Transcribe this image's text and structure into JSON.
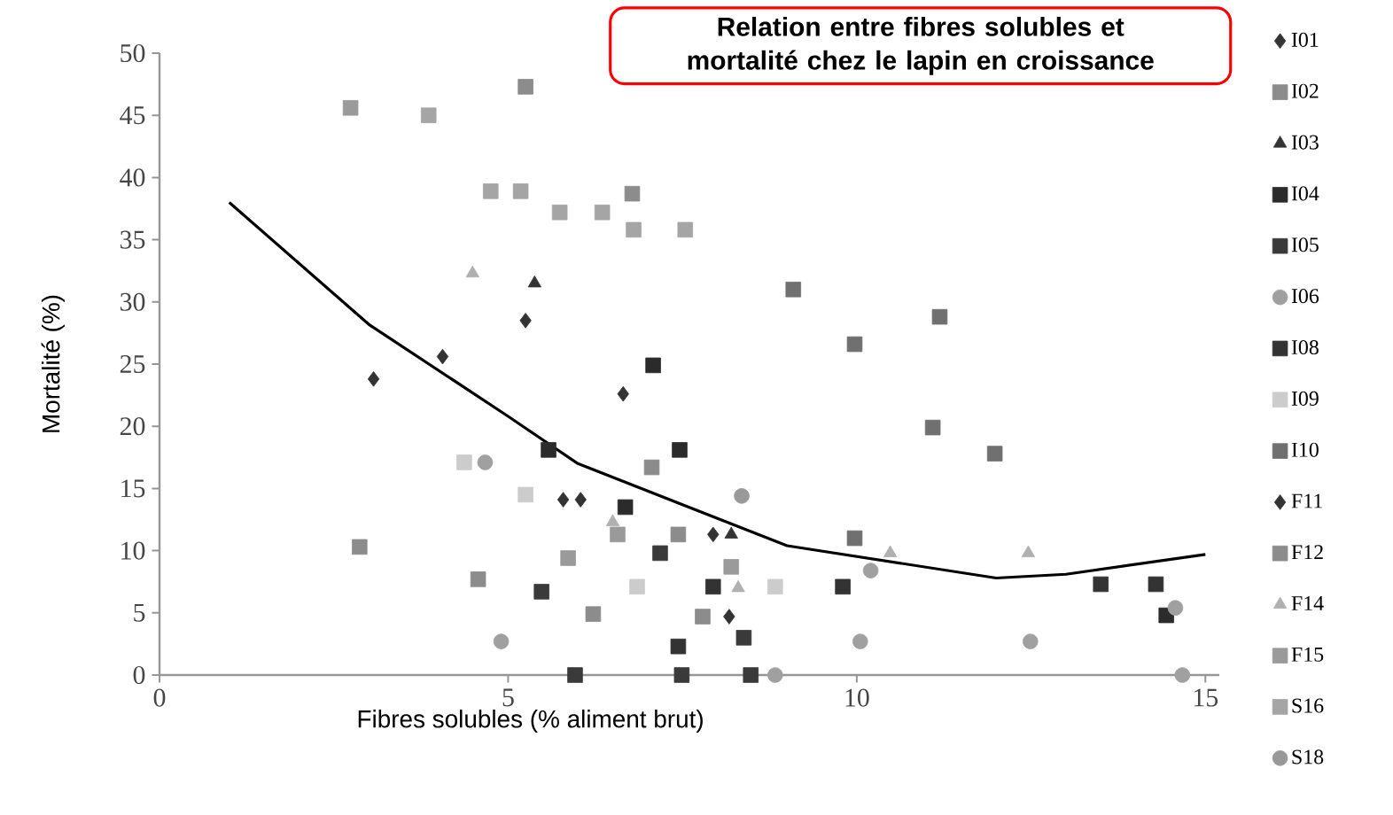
{
  "chart_data": {
    "type": "scatter",
    "title": "Relation entre fibres solubles et mortalité chez le lapin en croissance",
    "xlabel": "Fibres solubles  (% aliment brut)",
    "ylabel": "Mortalité (%)",
    "xlim": [
      0,
      15.2
    ],
    "ylim": [
      0,
      50
    ],
    "xticks": [
      0,
      5,
      10,
      15
    ],
    "yticks": [
      0,
      5,
      10,
      15,
      20,
      25,
      30,
      35,
      40,
      45,
      50
    ],
    "grid": false,
    "legend": "right",
    "series": [
      {
        "name": "I01",
        "color": "#333333",
        "marker": "diamond",
        "x": [
          3.07,
          4.06,
          5.25,
          6.65
        ],
        "values": [
          23.8,
          25.6,
          28.5,
          22.6
        ]
      },
      {
        "name": "I02",
        "color": "#8c8c8c",
        "marker": "square",
        "x": [
          5.25,
          6.78
        ],
        "values": [
          47.3,
          38.7
        ]
      },
      {
        "name": "I03",
        "color": "#333333",
        "marker": "triangle",
        "x": [
          5.38,
          8.2
        ],
        "values": [
          31.5,
          11.3
        ]
      },
      {
        "name": "I04",
        "color": "#2b2b2b",
        "marker": "square",
        "x": [
          5.58,
          6.68,
          7.08,
          7.46,
          14.44
        ],
        "values": [
          18.1,
          13.5,
          24.9,
          18.1,
          4.8
        ]
      },
      {
        "name": "I05",
        "color": "#3a3a3a",
        "marker": "square",
        "x": [
          5.48,
          5.96,
          7.18,
          7.49,
          8.38,
          8.48
        ],
        "values": [
          6.7,
          0,
          9.8,
          0,
          3.0,
          0
        ]
      },
      {
        "name": "I06",
        "color": "#a0a0a0",
        "marker": "circle",
        "x": [
          4.67,
          4.9,
          8.83,
          10.05,
          10.2,
          12.49,
          14.57,
          14.67
        ],
        "values": [
          17.1,
          2.7,
          0,
          2.7,
          8.4,
          2.7,
          5.4,
          0
        ]
      },
      {
        "name": "I08",
        "color": "#333333",
        "marker": "square",
        "x": [
          7.44,
          7.94,
          9.8,
          13.5,
          14.29
        ],
        "values": [
          2.3,
          7.1,
          7.1,
          7.3,
          7.3
        ]
      },
      {
        "name": "I09",
        "color": "#cccccc",
        "marker": "square",
        "x": [
          4.37,
          5.25,
          6.85,
          8.83
        ],
        "values": [
          17.1,
          14.5,
          7.1,
          7.1
        ]
      },
      {
        "name": "I10",
        "color": "#707070",
        "marker": "square",
        "x": [
          9.09,
          9.97,
          9.97,
          11.19,
          11.09,
          11.98
        ],
        "values": [
          31.0,
          26.6,
          11.0,
          28.8,
          19.9,
          17.8
        ]
      },
      {
        "name": "F11",
        "color": "#333333",
        "marker": "diamond",
        "x": [
          5.79,
          6.04,
          7.94,
          8.17
        ],
        "values": [
          14.1,
          14.1,
          11.3,
          4.7
        ]
      },
      {
        "name": "F12",
        "color": "#8c8c8c",
        "marker": "square",
        "x": [
          2.87,
          4.57,
          6.22,
          7.06,
          7.44,
          7.79
        ],
        "values": [
          10.3,
          7.7,
          4.9,
          16.7,
          11.3,
          4.7
        ]
      },
      {
        "name": "F14",
        "color": "#b0b0b0",
        "marker": "triangle",
        "x": [
          4.49,
          6.5,
          8.3,
          10.48,
          12.46
        ],
        "values": [
          32.3,
          12.3,
          7.0,
          9.8,
          9.8
        ]
      },
      {
        "name": "F15",
        "color": "#9a9a9a",
        "marker": "square",
        "x": [
          2.74,
          5.86,
          6.57,
          8.2
        ],
        "values": [
          45.6,
          9.4,
          11.3,
          8.7
        ]
      },
      {
        "name": "S16",
        "color": "#a5a5a5",
        "marker": "square",
        "x": [
          3.86,
          4.75,
          5.18,
          5.74,
          6.35,
          6.8,
          7.54
        ],
        "values": [
          45.0,
          38.9,
          38.9,
          37.2,
          37.2,
          35.8,
          35.8
        ]
      },
      {
        "name": "S18",
        "color": "#999999",
        "marker": "circle",
        "x": [
          8.35
        ],
        "values": [
          14.4
        ]
      },
      {
        "type": "line",
        "color": "#000000",
        "marker": "none",
        "x": [
          1,
          3,
          5,
          6,
          9,
          12,
          13,
          15
        ],
        "values": [
          38.0,
          28.2,
          20.8,
          17.0,
          10.4,
          7.8,
          8.1,
          9.7
        ]
      }
    ]
  }
}
